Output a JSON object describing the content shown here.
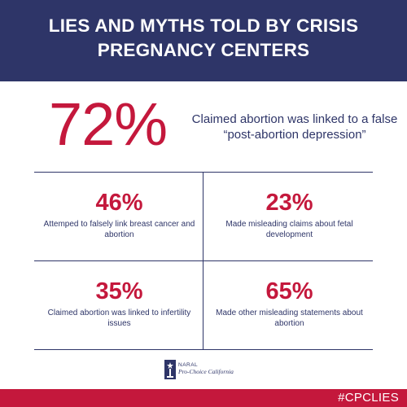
{
  "header": {
    "title": "LIES AND MYTHS TOLD BY CRISIS PREGNANCY CENTERS"
  },
  "headline_stat": {
    "value": "72%",
    "description": "Claimed abortion was linked to a false “post-abortion depression”"
  },
  "stats": [
    {
      "value": "46%",
      "description": "Attemped to falsely link breast cancer and abortion"
    },
    {
      "value": "23%",
      "description": "Made misleading claims about fetal development"
    },
    {
      "value": "35%",
      "description": "Claimed abortion was linked to infertility issues"
    },
    {
      "value": "65%",
      "description": "Made other misleading statements about abortion"
    }
  ],
  "logo": {
    "line1": "NARAL",
    "line2": "Pro-Choice California",
    "icon": "statue-of-liberty-icon"
  },
  "footer": {
    "hashtag": "#CPCLIES"
  },
  "colors": {
    "navy": "#2e3568",
    "red": "#c4183c",
    "background": "#ffffff"
  }
}
